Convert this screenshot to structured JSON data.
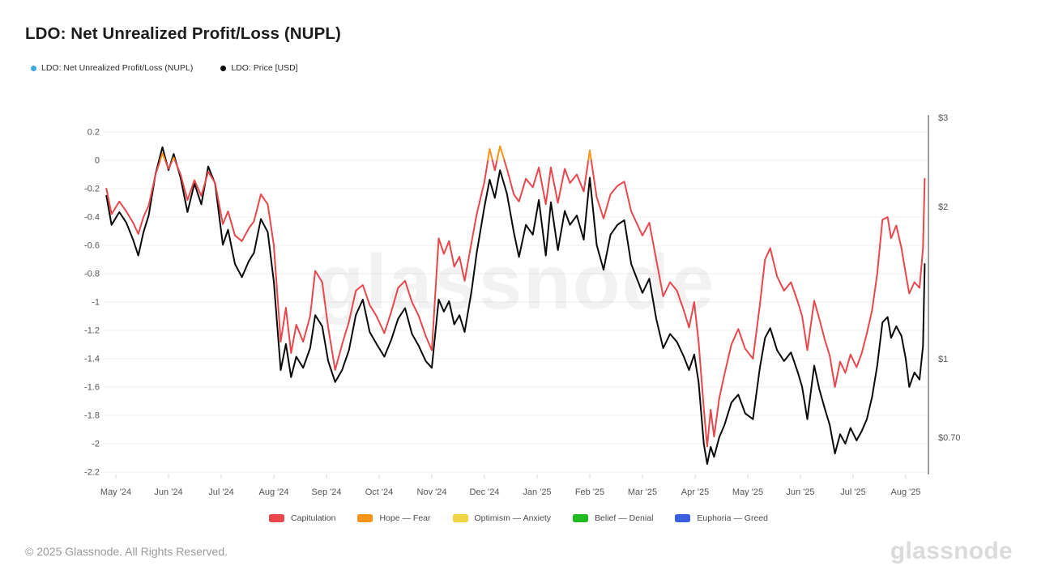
{
  "header": {
    "title": "LDO: Net Unrealized Profit/Loss (NUPL)"
  },
  "top_legend": [
    {
      "label": "LDO: Net Unrealized Profit/Loss (NUPL)",
      "color": "#3fa9e0"
    },
    {
      "label": "LDO: Price [USD]",
      "color": "#0a0a0a"
    }
  ],
  "zone_legend": [
    {
      "label": "Capitulation",
      "color": "#e8474c"
    },
    {
      "label": "Hope — Fear",
      "color": "#f7941c"
    },
    {
      "label": "Optimism — Anxiety",
      "color": "#f2d544"
    },
    {
      "label": "Belief — Denial",
      "color": "#22b922"
    },
    {
      "label": "Euphoria — Greed",
      "color": "#3a60e0"
    }
  ],
  "watermark": "glassnode",
  "footer": {
    "copyright": "© 2025 Glassnode. All Rights Reserved.",
    "brand": "glassnode"
  },
  "chart_data": {
    "type": "line",
    "title": "LDO: Net Unrealized Profit/Loss (NUPL)",
    "x_axis": {
      "labels": [
        "May '24",
        "Jun '24",
        "Jul '24",
        "Aug '24",
        "Sep '24",
        "Oct '24",
        "Nov '24",
        "Dec '24",
        "Jan '25",
        "Feb '25",
        "Mar '25",
        "Apr '25",
        "May '25",
        "Jun '25",
        "Jul '25",
        "Aug '25"
      ]
    },
    "y_left": {
      "name": "NUPL",
      "range": [
        -2.2,
        0.2
      ],
      "ticks": [
        {
          "value": 0.2,
          "label": "0.2"
        },
        {
          "value": 0,
          "label": "0"
        },
        {
          "value": -0.2,
          "label": "-0.2"
        },
        {
          "value": -0.4,
          "label": "-0.4"
        },
        {
          "value": -0.6,
          "label": "-0.6"
        },
        {
          "value": -0.8,
          "label": "-0.8"
        },
        {
          "value": -1,
          "label": "-1"
        },
        {
          "value": -1.2,
          "label": "-1.2"
        },
        {
          "value": -1.4,
          "label": "-1.4"
        },
        {
          "value": -1.6,
          "label": "-1.6"
        },
        {
          "value": -1.8,
          "label": "-1.8"
        },
        {
          "value": -2,
          "label": "-2"
        },
        {
          "value": -2.2,
          "label": "-2.2"
        }
      ]
    },
    "y_right": {
      "name": "Price USD",
      "scale": "log",
      "ticks": [
        {
          "value": 3,
          "label": "$3"
        },
        {
          "value": 2,
          "label": "$2"
        },
        {
          "value": 1,
          "label": "$1"
        },
        {
          "value": 0.7,
          "label": "$0.70"
        }
      ]
    },
    "series": {
      "nupl": {
        "name": "LDO: Net Unrealized Profit/Loss (NUPL)",
        "axis": "left",
        "color": "#e8474c",
        "above_zero_color": "#f7941c"
      },
      "price": {
        "name": "LDO: Price [USD]",
        "axis": "right",
        "color": "#0a0a0a"
      },
      "points": [
        [
          "2024-04-26",
          -0.2,
          2.1
        ],
        [
          "2024-04-29",
          -0.38,
          1.84
        ],
        [
          "2024-05-03",
          -0.29,
          1.95
        ],
        [
          "2024-05-07",
          -0.36,
          1.86
        ],
        [
          "2024-05-11",
          -0.44,
          1.72
        ],
        [
          "2024-05-14",
          -0.52,
          1.6
        ],
        [
          "2024-05-17",
          -0.4,
          1.78
        ],
        [
          "2024-05-20",
          -0.32,
          1.92
        ],
        [
          "2024-05-24",
          -0.1,
          2.32
        ],
        [
          "2024-05-28",
          0.05,
          2.62
        ],
        [
          "2024-06-01",
          -0.06,
          2.36
        ],
        [
          "2024-06-04",
          0.02,
          2.54
        ],
        [
          "2024-06-08",
          -0.1,
          2.28
        ],
        [
          "2024-06-12",
          -0.28,
          1.95
        ],
        [
          "2024-06-16",
          -0.14,
          2.22
        ],
        [
          "2024-06-20",
          -0.25,
          2.02
        ],
        [
          "2024-06-24",
          -0.08,
          2.4
        ],
        [
          "2024-06-28",
          -0.16,
          2.22
        ],
        [
          "2024-07-02",
          -0.45,
          1.68
        ],
        [
          "2024-07-05",
          -0.36,
          1.8
        ],
        [
          "2024-07-09",
          -0.53,
          1.54
        ],
        [
          "2024-07-13",
          -0.57,
          1.45
        ],
        [
          "2024-07-17",
          -0.48,
          1.56
        ],
        [
          "2024-07-20",
          -0.43,
          1.62
        ],
        [
          "2024-07-24",
          -0.24,
          1.89
        ],
        [
          "2024-07-28",
          -0.31,
          1.78
        ],
        [
          "2024-08-01",
          -0.6,
          1.42
        ],
        [
          "2024-08-05",
          -1.28,
          0.95
        ],
        [
          "2024-08-08",
          -1.04,
          1.07
        ],
        [
          "2024-08-11",
          -1.36,
          0.92
        ],
        [
          "2024-08-14",
          -1.16,
          1.01
        ],
        [
          "2024-08-18",
          -1.28,
          0.96
        ],
        [
          "2024-08-22",
          -1.1,
          1.05
        ],
        [
          "2024-08-25",
          -0.78,
          1.22
        ],
        [
          "2024-08-29",
          -0.86,
          1.16
        ],
        [
          "2024-09-02",
          -1.18,
          0.99
        ],
        [
          "2024-09-06",
          -1.48,
          0.9
        ],
        [
          "2024-09-10",
          -1.3,
          0.95
        ],
        [
          "2024-09-14",
          -1.14,
          1.04
        ],
        [
          "2024-09-18",
          -0.92,
          1.22
        ],
        [
          "2024-09-22",
          -0.88,
          1.31
        ],
        [
          "2024-09-26",
          -1.02,
          1.13
        ],
        [
          "2024-09-30",
          -1.1,
          1.07
        ],
        [
          "2024-10-04",
          -1.22,
          1.01
        ],
        [
          "2024-10-08",
          -1.07,
          1.09
        ],
        [
          "2024-10-12",
          -0.9,
          1.2
        ],
        [
          "2024-10-16",
          -0.85,
          1.26
        ],
        [
          "2024-10-20",
          -1.0,
          1.12
        ],
        [
          "2024-10-24",
          -1.1,
          1.06
        ],
        [
          "2024-10-28",
          -1.24,
          0.99
        ],
        [
          "2024-11-01",
          -1.34,
          0.96
        ],
        [
          "2024-11-05",
          -0.55,
          1.31
        ],
        [
          "2024-11-08",
          -0.66,
          1.24
        ],
        [
          "2024-11-11",
          -0.57,
          1.3
        ],
        [
          "2024-11-14",
          -0.75,
          1.17
        ],
        [
          "2024-11-17",
          -0.68,
          1.22
        ],
        [
          "2024-11-20",
          -0.85,
          1.13
        ],
        [
          "2024-11-24",
          -0.58,
          1.36
        ],
        [
          "2024-11-27",
          -0.38,
          1.62
        ],
        [
          "2024-12-01",
          -0.15,
          2.0
        ],
        [
          "2024-12-04",
          0.08,
          2.26
        ],
        [
          "2024-12-07",
          -0.07,
          2.08
        ],
        [
          "2024-12-10",
          0.1,
          2.36
        ],
        [
          "2024-12-14",
          -0.06,
          2.12
        ],
        [
          "2024-12-18",
          -0.24,
          1.78
        ],
        [
          "2024-12-21",
          -0.29,
          1.59
        ],
        [
          "2024-12-25",
          -0.13,
          1.84
        ],
        [
          "2024-12-29",
          -0.19,
          1.76
        ],
        [
          "2025-01-02",
          -0.05,
          2.06
        ],
        [
          "2025-01-06",
          -0.31,
          1.6
        ],
        [
          "2025-01-09",
          -0.05,
          2.04
        ],
        [
          "2025-01-13",
          -0.3,
          1.64
        ],
        [
          "2025-01-17",
          -0.06,
          1.96
        ],
        [
          "2025-01-20",
          -0.16,
          1.84
        ],
        [
          "2025-01-24",
          -0.1,
          1.92
        ],
        [
          "2025-01-28",
          -0.22,
          1.72
        ],
        [
          "2025-02-01",
          0.07,
          2.28
        ],
        [
          "2025-02-05",
          -0.26,
          1.68
        ],
        [
          "2025-02-09",
          -0.41,
          1.5
        ],
        [
          "2025-02-13",
          -0.24,
          1.76
        ],
        [
          "2025-02-17",
          -0.18,
          1.84
        ],
        [
          "2025-02-21",
          -0.15,
          1.88
        ],
        [
          "2025-02-25",
          -0.36,
          1.54
        ],
        [
          "2025-03-01",
          -0.53,
          1.35
        ],
        [
          "2025-03-05",
          -0.44,
          1.44
        ],
        [
          "2025-03-09",
          -0.7,
          1.2
        ],
        [
          "2025-03-13",
          -0.96,
          1.05
        ],
        [
          "2025-03-17",
          -0.86,
          1.12
        ],
        [
          "2025-03-21",
          -0.92,
          1.08
        ],
        [
          "2025-03-25",
          -1.06,
          1.01
        ],
        [
          "2025-03-28",
          -1.18,
          0.95
        ],
        [
          "2025-03-31",
          -1.0,
          1.02
        ],
        [
          "2025-04-03",
          -1.28,
          0.9
        ],
        [
          "2025-04-06",
          -1.75,
          0.68
        ],
        [
          "2025-04-08",
          -2.02,
          0.62
        ],
        [
          "2025-04-10",
          -1.76,
          0.67
        ],
        [
          "2025-04-12",
          -1.95,
          0.64
        ],
        [
          "2025-04-15",
          -1.68,
          0.7
        ],
        [
          "2025-04-18",
          -1.51,
          0.74
        ],
        [
          "2025-04-22",
          -1.3,
          0.82
        ],
        [
          "2025-04-26",
          -1.19,
          0.85
        ],
        [
          "2025-04-30",
          -1.33,
          0.78
        ],
        [
          "2025-05-04",
          -1.4,
          0.76
        ],
        [
          "2025-05-08",
          -1.02,
          0.96
        ],
        [
          "2025-05-11",
          -0.7,
          1.1
        ],
        [
          "2025-05-14",
          -0.62,
          1.15
        ],
        [
          "2025-05-18",
          -0.82,
          1.04
        ],
        [
          "2025-05-22",
          -0.92,
          0.99
        ],
        [
          "2025-05-26",
          -0.86,
          1.03
        ],
        [
          "2025-05-30",
          -1.0,
          0.94
        ],
        [
          "2025-06-02",
          -1.1,
          0.88
        ],
        [
          "2025-06-05",
          -1.34,
          0.76
        ],
        [
          "2025-06-09",
          -0.99,
          0.97
        ],
        [
          "2025-06-12",
          -1.12,
          0.87
        ],
        [
          "2025-06-15",
          -1.26,
          0.8
        ],
        [
          "2025-06-18",
          -1.38,
          0.74
        ],
        [
          "2025-06-21",
          -1.6,
          0.65
        ],
        [
          "2025-06-24",
          -1.42,
          0.71
        ],
        [
          "2025-06-27",
          -1.5,
          0.68
        ],
        [
          "2025-06-30",
          -1.37,
          0.73
        ],
        [
          "2025-07-03",
          -1.46,
          0.69
        ],
        [
          "2025-07-06",
          -1.36,
          0.72
        ],
        [
          "2025-07-09",
          -1.22,
          0.76
        ],
        [
          "2025-07-12",
          -1.06,
          0.84
        ],
        [
          "2025-07-15",
          -0.8,
          0.97
        ],
        [
          "2025-07-18",
          -0.42,
          1.18
        ],
        [
          "2025-07-21",
          -0.4,
          1.21
        ],
        [
          "2025-07-23",
          -0.55,
          1.1
        ],
        [
          "2025-07-26",
          -0.46,
          1.16
        ],
        [
          "2025-07-29",
          -0.62,
          1.11
        ],
        [
          "2025-08-01",
          -0.8,
          1.0
        ],
        [
          "2025-08-03",
          -0.94,
          0.88
        ],
        [
          "2025-08-06",
          -0.86,
          0.94
        ],
        [
          "2025-08-09",
          -0.9,
          0.91
        ],
        [
          "2025-08-11",
          -0.62,
          1.06
        ],
        [
          "2025-08-12",
          -0.13,
          1.54
        ]
      ]
    }
  }
}
